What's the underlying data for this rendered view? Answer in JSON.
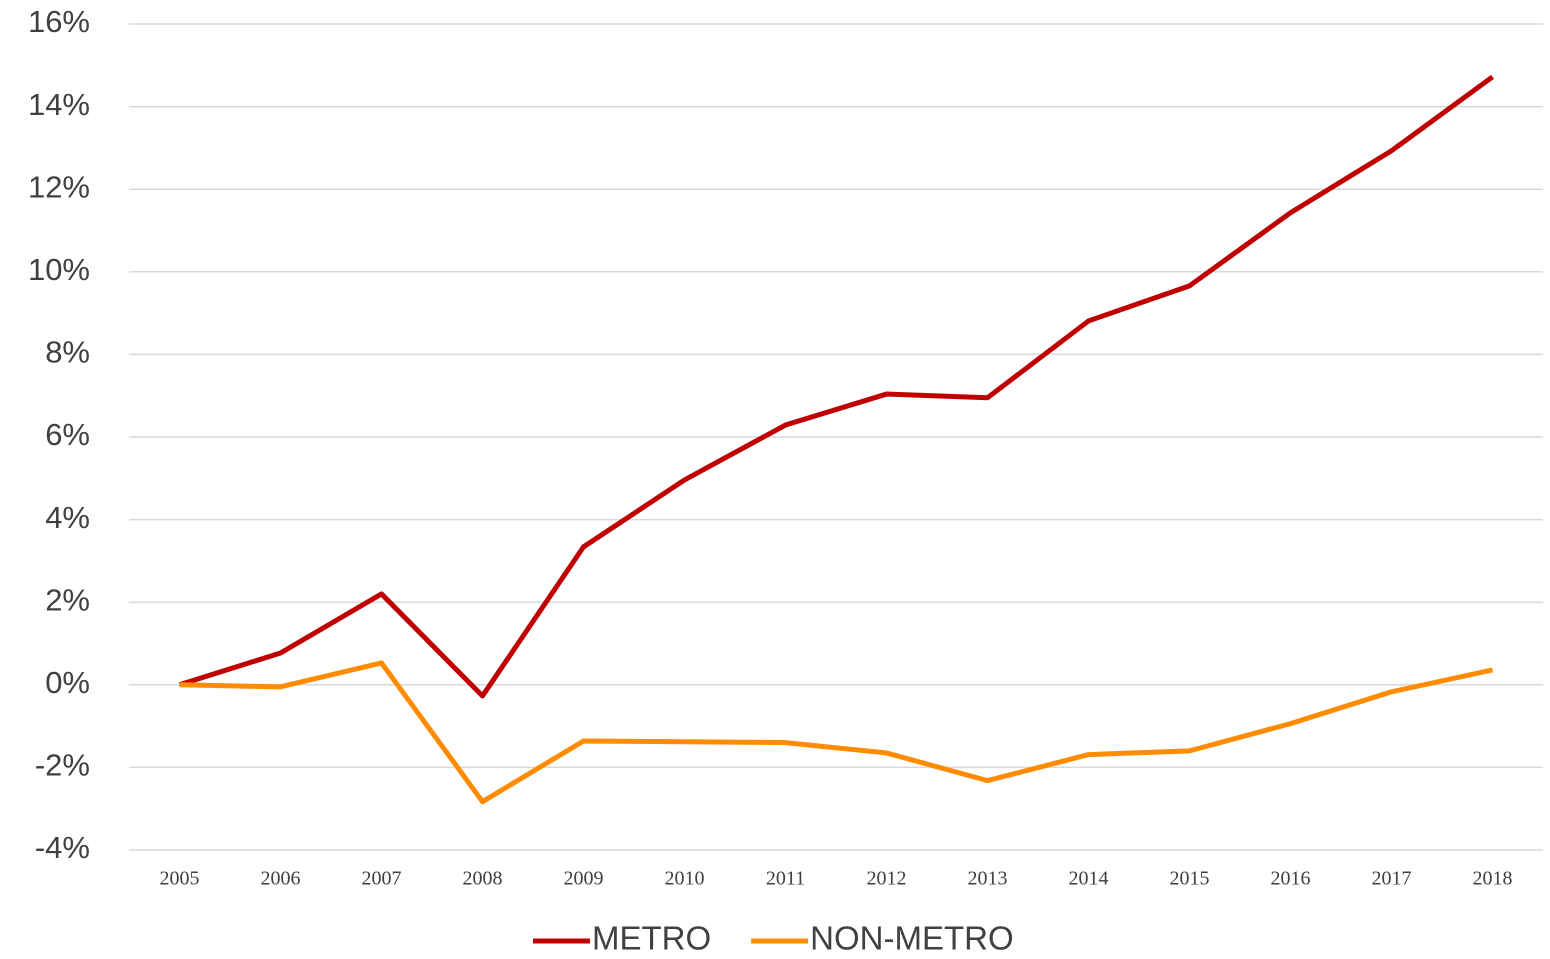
{
  "chart_data": {
    "type": "line",
    "categories": [
      "2005",
      "2006",
      "2007",
      "2008",
      "2009",
      "2010",
      "2011",
      "2012",
      "2013",
      "2014",
      "2015",
      "2016",
      "2017",
      "2018"
    ],
    "series": [
      {
        "name": "METRO",
        "color": "#c00000",
        "values": [
          0,
          0.77,
          2.2,
          -0.27,
          3.34,
          4.96,
          6.29,
          7.04,
          6.95,
          8.81,
          9.66,
          11.43,
          12.93,
          14.72
        ]
      },
      {
        "name": "NON-METRO",
        "color": "#ff8c00",
        "values": [
          0,
          -0.05,
          0.53,
          -2.83,
          -1.36,
          -1.38,
          -1.4,
          -1.65,
          -2.32,
          -1.69,
          -1.6,
          -0.94,
          -0.17,
          0.36
        ]
      }
    ],
    "ylim": [
      -4,
      16
    ],
    "yticks": [
      {
        "value": -4,
        "label": "-4%"
      },
      {
        "value": -2,
        "label": "-2%"
      },
      {
        "value": 0,
        "label": "0%"
      },
      {
        "value": 2,
        "label": "2%"
      },
      {
        "value": 4,
        "label": "4%"
      },
      {
        "value": 6,
        "label": "6%"
      },
      {
        "value": 8,
        "label": "8%"
      },
      {
        "value": 10,
        "label": "10%"
      },
      {
        "value": 12,
        "label": "12%"
      },
      {
        "value": 14,
        "label": "14%"
      },
      {
        "value": 16,
        "label": "16%"
      }
    ],
    "grid": true,
    "legend": "bottom"
  }
}
